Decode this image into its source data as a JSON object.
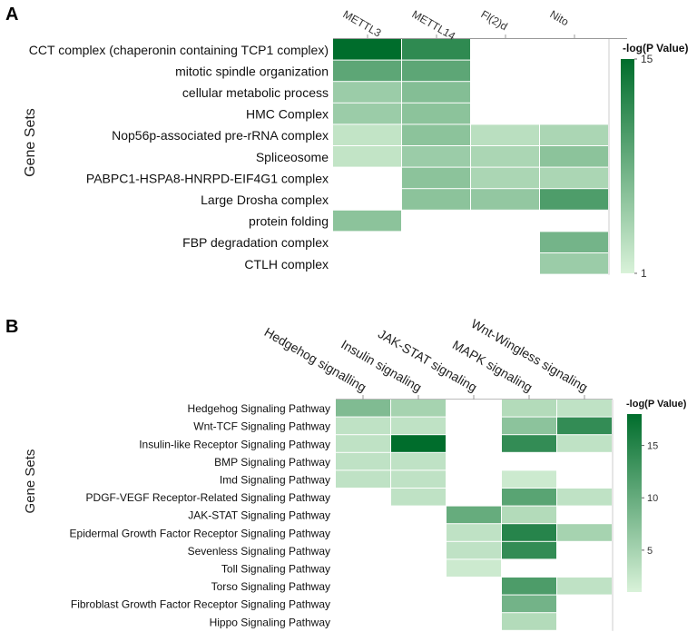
{
  "chart_data": [
    {
      "type": "heatmap",
      "panel_label": "A",
      "ylabel": "Gene Sets",
      "columns": [
        "METTL3",
        "METTL14",
        "Fl(2)d",
        "Nito"
      ],
      "rows": [
        "CCT complex (chaperonin containing TCP1 complex)",
        "mitotic spindle organization",
        "cellular metabolic process",
        "HMC Complex",
        "Nop56p-associated pre-rRNA complex",
        "Spliceosome",
        "PABPC1-HSPA8-HNRPD-EIF4G1 complex",
        "Large Drosha complex",
        "protein folding",
        "FBP degradation complex",
        "CTLH complex"
      ],
      "values": [
        [
          15,
          12,
          null,
          null
        ],
        [
          9,
          9,
          null,
          null
        ],
        [
          5,
          6.5,
          null,
          null
        ],
        [
          5,
          6,
          null,
          null
        ],
        [
          2.5,
          6,
          3,
          4
        ],
        [
          2.5,
          5,
          4,
          6
        ],
        [
          null,
          6,
          4,
          4
        ],
        [
          null,
          6,
          5.5,
          10
        ],
        [
          6,
          null,
          null,
          null
        ],
        [
          null,
          null,
          null,
          7.5
        ],
        [
          null,
          null,
          null,
          5
        ]
      ],
      "colorbar": {
        "title": "-log(P Value)",
        "min": 1,
        "max": 15,
        "ticks": [
          1,
          15
        ]
      },
      "colors": {
        "low": "#d9f2d9",
        "high": "#006d2c"
      }
    },
    {
      "type": "heatmap",
      "panel_label": "B",
      "ylabel": "Gene Sets",
      "columns": [
        "Hedgehog signalling",
        "Insulin signaling",
        "JAK-STAT signaling",
        "MAPK signaling",
        "Wnt-Wingless signaling"
      ],
      "rows": [
        "Hedgehog Signaling Pathway",
        "Wnt-TCF Signaling Pathway",
        "Insulin-like Receptor Signaling Pathway",
        "BMP Signaling Pathway",
        "Imd Signaling Pathway",
        "PDGF-VEGF Receptor-Related Signaling Pathway",
        "JAK-STAT Signaling Pathway",
        "Epidermal Growth Factor Receptor Signaling Pathway",
        "Sevenless Signaling Pathway",
        "Toll Signaling Pathway",
        "Torso Signaling Pathway",
        "Fibroblast Growth Factor Receptor Signaling Pathway",
        "Hippo Signaling Pathway"
      ],
      "values": [
        [
          8,
          5,
          null,
          4,
          3
        ],
        [
          3,
          3,
          null,
          7,
          14
        ],
        [
          3,
          18,
          null,
          14,
          3
        ],
        [
          3,
          3,
          null,
          null,
          null
        ],
        [
          3,
          3,
          null,
          2,
          null
        ],
        [
          null,
          3,
          null,
          11,
          3
        ],
        [
          null,
          null,
          10,
          4,
          null
        ],
        [
          null,
          null,
          3,
          15,
          5
        ],
        [
          null,
          null,
          3,
          14,
          null
        ],
        [
          null,
          null,
          2,
          null,
          null
        ],
        [
          null,
          null,
          null,
          12,
          3
        ],
        [
          null,
          null,
          null,
          9,
          null
        ],
        [
          null,
          null,
          null,
          4,
          null
        ]
      ],
      "colorbar": {
        "title": "-log(P Value)",
        "min": 1,
        "max": 18,
        "ticks": [
          5,
          10,
          15
        ]
      },
      "colors": {
        "low": "#d9f2d9",
        "high": "#006d2c"
      }
    }
  ]
}
